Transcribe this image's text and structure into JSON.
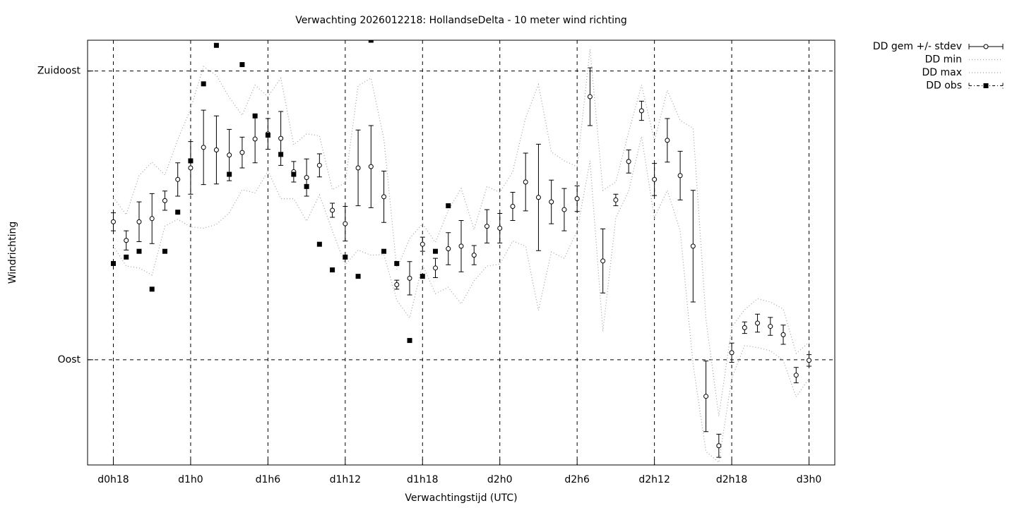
{
  "chart_data": {
    "type": "errorbar",
    "title": "Verwachting 2026012218: HollandseDelta - 10 meter wind richting",
    "xlabel": "Verwachtingstijd (UTC)",
    "ylabel": "Windrichting",
    "x": [
      18,
      19,
      20,
      21,
      22,
      23,
      24,
      25,
      26,
      27,
      28,
      29,
      30,
      31,
      32,
      33,
      34,
      35,
      36,
      37,
      38,
      39,
      40,
      41,
      42,
      43,
      44,
      45,
      46,
      47,
      48,
      49,
      50,
      51,
      52,
      53,
      54,
      55,
      56,
      57,
      58,
      59,
      60,
      61,
      62,
      63,
      64,
      65,
      66,
      67,
      68,
      69,
      70,
      71,
      72
    ],
    "xlim": [
      16,
      74
    ],
    "xticks": [
      {
        "value": 18,
        "label": "d0h18"
      },
      {
        "value": 24,
        "label": "d1h0"
      },
      {
        "value": 30,
        "label": "d1h6"
      },
      {
        "value": 36,
        "label": "d1h12"
      },
      {
        "value": 42,
        "label": "d1h18"
      },
      {
        "value": 48,
        "label": "d2h0"
      },
      {
        "value": 54,
        "label": "d2h6"
      },
      {
        "value": 60,
        "label": "d2h12"
      },
      {
        "value": 66,
        "label": "d2h18"
      },
      {
        "value": 72,
        "label": "d3h0"
      }
    ],
    "ylim": [
      73.6,
      139.8
    ],
    "yticks": [
      {
        "value": 90,
        "label": "Oost"
      },
      {
        "value": 135,
        "label": "Zuidoost"
      }
    ],
    "grid": true,
    "series": [
      {
        "name": "DD gem +/- stdev",
        "style": "errorbar",
        "color": "#000000",
        "values": [
          111.5,
          108.6,
          111.5,
          112.0,
          114.8,
          118.1,
          119.9,
          123.1,
          122.7,
          121.9,
          122.3,
          124.4,
          125.2,
          124.5,
          119.3,
          118.4,
          120.3,
          113.3,
          111.2,
          119.9,
          120.1,
          115.4,
          101.7,
          102.7,
          108.0,
          104.3,
          107.3,
          107.7,
          106.3,
          110.8,
          110.5,
          113.9,
          117.7,
          115.3,
          114.6,
          113.4,
          115.1,
          131.0,
          105.4,
          114.9,
          120.9,
          128.8,
          118.1,
          124.2,
          118.7,
          107.7,
          84.3,
          76.6,
          91.1,
          95.0,
          95.7,
          95.2,
          93.9,
          87.6,
          89.9
        ],
        "errors": [
          1.4,
          1.5,
          3.1,
          3.9,
          1.5,
          2.6,
          4.1,
          5.8,
          5.3,
          4.0,
          2.4,
          3.7,
          2.4,
          4.2,
          1.6,
          2.9,
          1.8,
          1.1,
          2.7,
          5.9,
          6.4,
          4.0,
          0.7,
          2.6,
          1.1,
          1.5,
          2.5,
          4.0,
          1.5,
          2.6,
          2.3,
          2.2,
          4.5,
          8.3,
          3.4,
          3.3,
          2.0,
          4.5,
          5.0,
          0.9,
          1.8,
          1.5,
          2.5,
          3.4,
          3.8,
          8.7,
          5.5,
          1.8,
          1.5,
          0.9,
          1.4,
          1.4,
          1.5,
          1.2,
          0.9
        ]
      },
      {
        "name": "DD min",
        "style": "dotted",
        "color": "#a0a0a0",
        "values": [
          107.7,
          104.6,
          104.3,
          103.2,
          110.8,
          111.9,
          110.7,
          110.5,
          111.1,
          112.9,
          116.5,
          116.0,
          119.4,
          115.1,
          115.1,
          111.6,
          115.7,
          110.1,
          104.8,
          107.1,
          106.3,
          106.4,
          99.3,
          96.5,
          104.8,
          100.3,
          101.3,
          98.7,
          102.3,
          104.6,
          104.9,
          108.5,
          107.7,
          97.7,
          106.8,
          105.8,
          110.1,
          121.0,
          94.4,
          112.1,
          116.3,
          124.8,
          112.1,
          116.4,
          110.1,
          89.3,
          75.7,
          74.0,
          87.1,
          92.2,
          91.9,
          91.4,
          89.9,
          84.2,
          87.1
        ]
      },
      {
        "name": "DD max",
        "style": "dotted",
        "color": "#a0a0a0",
        "values": [
          115.3,
          112.6,
          118.7,
          120.8,
          118.8,
          124.3,
          129.1,
          135.7,
          134.3,
          130.9,
          128.1,
          132.8,
          131.0,
          133.9,
          123.5,
          125.2,
          124.9,
          116.5,
          117.6,
          132.7,
          133.9,
          124.4,
          104.1,
          108.9,
          111.2,
          108.3,
          113.3,
          116.7,
          110.3,
          117.0,
          116.1,
          119.3,
          127.7,
          132.9,
          122.4,
          121.0,
          120.1,
          138.4,
          116.4,
          117.7,
          125.5,
          132.8,
          124.1,
          132.0,
          127.3,
          126.1,
          96.3,
          81.2,
          95.1,
          97.8,
          99.5,
          99.0,
          97.9,
          91.0,
          92.7
        ]
      },
      {
        "name": "DD obs",
        "style": "points",
        "color": "#000000",
        "values": [
          105.0,
          106.0,
          106.9,
          101.0,
          106.9,
          113.0,
          121.0,
          133.0,
          139.0,
          118.9,
          136.0,
          128.0,
          125.0,
          122.0,
          118.9,
          117.0,
          108.0,
          104.0,
          106.0,
          103.0,
          139.8,
          106.9,
          105.0,
          93.0,
          103.0,
          106.9,
          114.0,
          null,
          null,
          null,
          null,
          null,
          null,
          null,
          null,
          null,
          null,
          null,
          null,
          null,
          null,
          null,
          null,
          null,
          null,
          null,
          null,
          null,
          null,
          null,
          null,
          null,
          null,
          null,
          null
        ]
      }
    ]
  }
}
